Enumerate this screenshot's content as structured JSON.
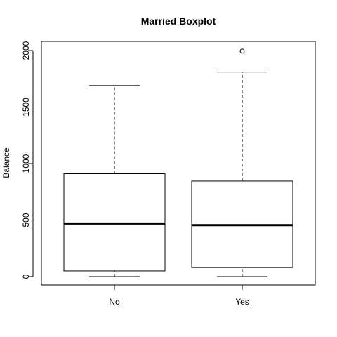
{
  "chart_data": {
    "type": "boxplot",
    "title": "Married Boxplot",
    "xlabel": "",
    "ylabel": "Balance",
    "ylim": [
      0,
      2000
    ],
    "y_ticks": [
      0,
      500,
      1000,
      1500,
      2000
    ],
    "y_tick_labels": [
      "0",
      "500",
      "1000",
      "1500",
      "2000"
    ],
    "categories": [
      "No",
      "Yes"
    ],
    "boxes": [
      {
        "category": "No",
        "min": 0,
        "q1": 50,
        "median": 470,
        "q3": 910,
        "max": 1690,
        "outliers": []
      },
      {
        "category": "Yes",
        "min": 0,
        "q1": 80,
        "median": 455,
        "q3": 845,
        "max": 1810,
        "outliers": [
          1995
        ]
      }
    ],
    "grid": false,
    "colors": {
      "box_fill": "#ffffff",
      "stroke": "#000000"
    }
  }
}
